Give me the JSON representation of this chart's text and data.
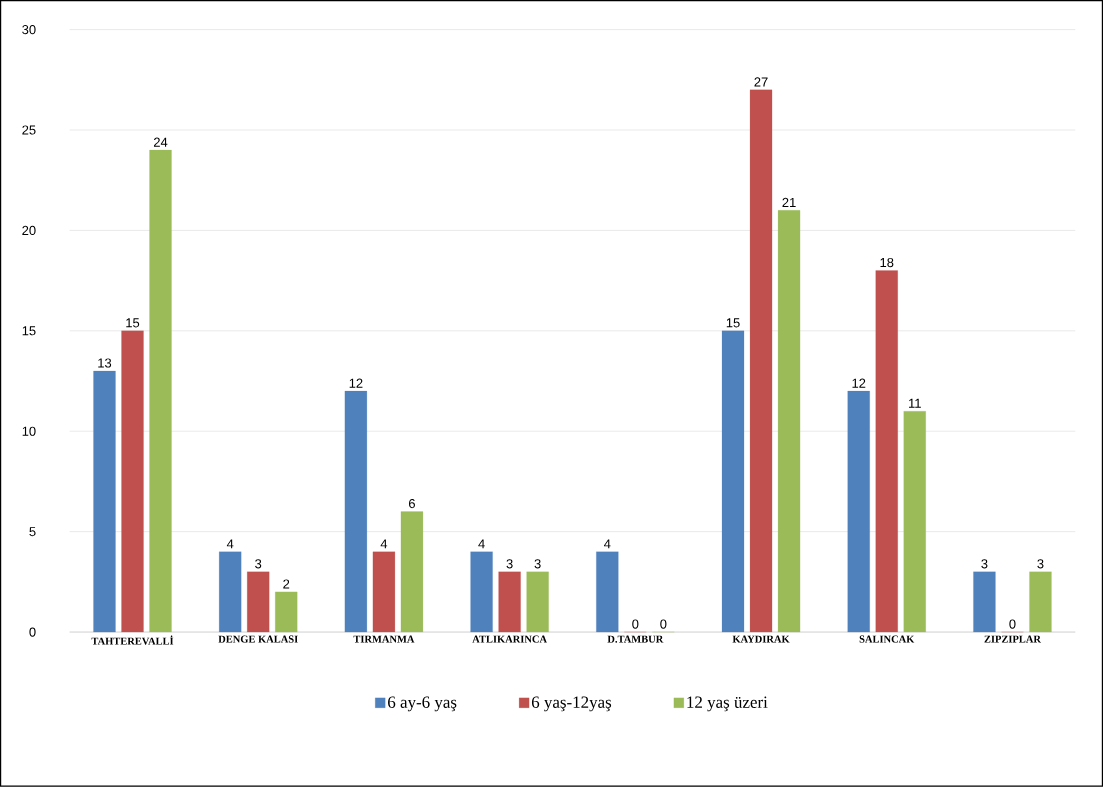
{
  "chart_data": {
    "type": "bar",
    "categories": [
      "TAHTEREVALLİ",
      "DENGE KALASI",
      "TIRMANMA",
      "ATLIKARINCA",
      "D.TAMBUR",
      "KAYDIRAK",
      "SALINCAK",
      "ZIPZIPLAR"
    ],
    "series": [
      {
        "name": "6 ay-6 yaş",
        "color": "#4f81bd",
        "values": [
          13,
          4,
          12,
          4,
          4,
          15,
          12,
          3
        ]
      },
      {
        "name": "6 yaş-12yaş",
        "color": "#c0504d",
        "values": [
          15,
          3,
          4,
          3,
          0,
          27,
          18,
          0
        ]
      },
      {
        "name": "12 yaş üzeri",
        "color": "#9bbb59",
        "values": [
          24,
          2,
          6,
          3,
          0,
          21,
          11,
          3
        ]
      }
    ],
    "ylim": [
      0,
      30
    ],
    "yticks": [
      0,
      5,
      10,
      15,
      20,
      25,
      30
    ],
    "grid": "y",
    "legend": "bottom",
    "data_labels": true
  }
}
